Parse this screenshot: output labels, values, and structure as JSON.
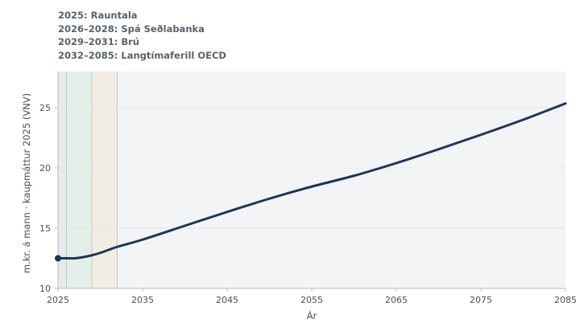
{
  "legend": [
    "2025: Rauntala",
    "2026–2028: Spá Seðlabanka",
    "2029–2031: Brú",
    "2032–2085: Langtímaferill OECD"
  ],
  "colors": {
    "plot_bg": "#f3f4f6",
    "band_actual": "#e6e9ed",
    "band_forecast": "#e5efe9",
    "band_bridge": "#f2ede2",
    "line": "#1f3557",
    "grid": "#e3e5e8",
    "axis": "#b9bdc3"
  },
  "chart_data": {
    "type": "line",
    "xlabel": "Ár",
    "ylabel": "m.kr. á mann · kaupmáttur 2025 (VNV)",
    "xlim": [
      2025,
      2085
    ],
    "ylim": [
      10,
      28
    ],
    "xticks": [
      2025,
      2035,
      2045,
      2055,
      2065,
      2075,
      2085
    ],
    "yticks": [
      10,
      15,
      20,
      25
    ],
    "grid": "horizontal",
    "bands": [
      {
        "from": 2025,
        "to": 2026,
        "label": "2025: Rauntala"
      },
      {
        "from": 2026,
        "to": 2029,
        "label": "2026–2028: Spá Seðlabanka"
      },
      {
        "from": 2029,
        "to": 2032,
        "label": "2029–2031: Brú"
      },
      {
        "from": 2032,
        "to": 2085,
        "label": "2032–2085: Langtímaferill OECD"
      }
    ],
    "series": [
      {
        "x": [
          2025,
          2026,
          2027,
          2028,
          2029,
          2030,
          2031,
          2032,
          2035,
          2040,
          2045,
          2050,
          2055,
          2060,
          2065,
          2070,
          2075,
          2080,
          2085
        ],
        "values": [
          12.5,
          12.5,
          12.5,
          12.6,
          12.75,
          12.95,
          13.2,
          13.45,
          14.05,
          15.2,
          16.35,
          17.45,
          18.45,
          19.35,
          20.4,
          21.55,
          22.75,
          24.0,
          25.35
        ]
      }
    ]
  }
}
